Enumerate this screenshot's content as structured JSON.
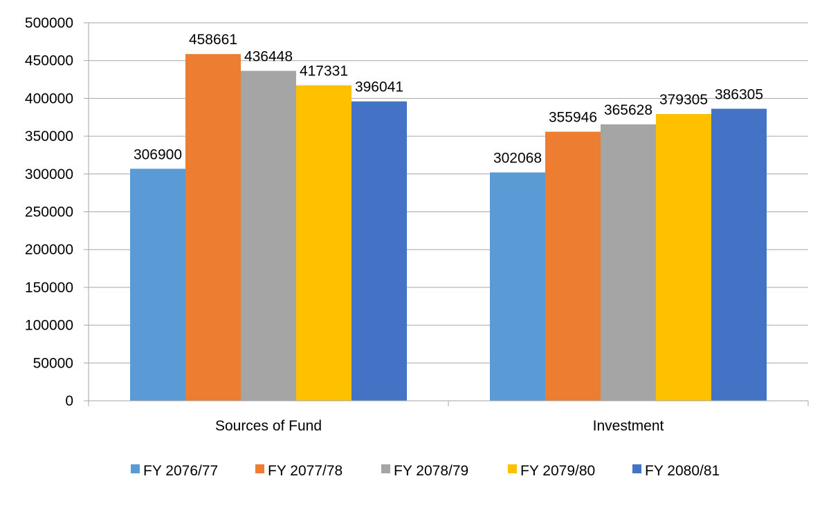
{
  "chart_data": {
    "type": "bar",
    "title": "",
    "xlabel": "",
    "ylabel": "",
    "categories": [
      "Sources of Fund",
      "Investment"
    ],
    "series": [
      {
        "name": "FY 2076/77",
        "color": "#5B9BD5",
        "values": [
          306900,
          302068
        ]
      },
      {
        "name": "FY 2077/78",
        "color": "#ED7D31",
        "values": [
          458661,
          355946
        ]
      },
      {
        "name": "FY 2078/79",
        "color": "#A5A5A5",
        "values": [
          436448,
          365628
        ]
      },
      {
        "name": "FY 2079/80",
        "color": "#FFC000",
        "values": [
          417331,
          379305
        ]
      },
      {
        "name": "FY 2080/81",
        "color": "#4472C4",
        "values": [
          396041,
          386305
        ]
      }
    ],
    "ylim": [
      0,
      500000
    ],
    "yticks": [
      0,
      50000,
      100000,
      150000,
      200000,
      250000,
      300000,
      350000,
      400000,
      450000,
      500000
    ],
    "grid": true,
    "legend": "bottom",
    "data_labels": true
  }
}
